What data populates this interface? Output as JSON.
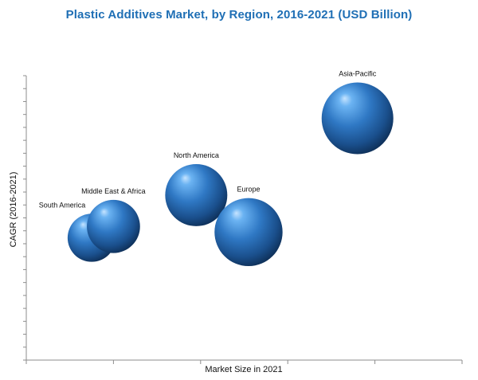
{
  "chart_data": {
    "type": "bubble",
    "title": "Plastic Additives Market, by Region, 2016-2021 (USD Billion)",
    "xlabel": "Market Size in 2021",
    "ylabel": "CAGR (2016-2021)",
    "x_ticks_labeled": false,
    "y_ticks_labeled": false,
    "grid": false,
    "legend": "none",
    "bubble_color": "#2f6fb6",
    "series": [
      {
        "name": "South America",
        "x": 0.15,
        "y": 0.43,
        "size": 0.45
      },
      {
        "name": "Middle East & Africa",
        "x": 0.2,
        "y": 0.47,
        "size": 0.55
      },
      {
        "name": "North America",
        "x": 0.39,
        "y": 0.58,
        "size": 0.75
      },
      {
        "name": "Europe",
        "x": 0.51,
        "y": 0.45,
        "size": 0.9
      },
      {
        "name": "Asia-Pacific",
        "x": 0.76,
        "y": 0.85,
        "size": 1.0
      }
    ]
  }
}
